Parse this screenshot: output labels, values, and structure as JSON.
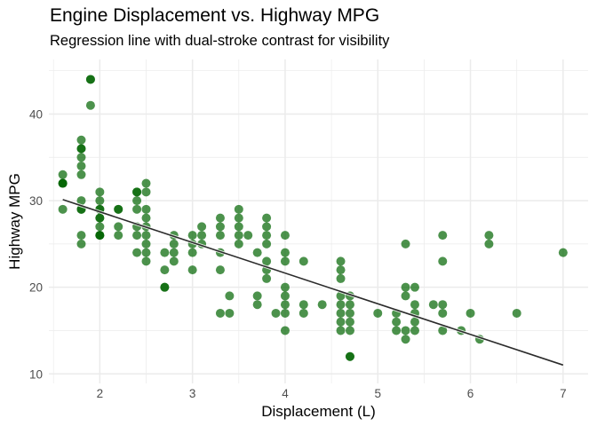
{
  "chart_data": {
    "type": "scatter",
    "title": "Engine Displacement vs. Highway MPG",
    "subtitle": "Regression line with dual-stroke contrast for visibility",
    "xlabel": "Displacement (L)",
    "ylabel": "Highway MPG",
    "xlim": [
      1.45,
      7.27
    ],
    "ylim": [
      8.9,
      46.3
    ],
    "xticks": [
      2,
      3,
      4,
      5,
      6,
      7
    ],
    "yticks": [
      10,
      20,
      30,
      40
    ],
    "grid": true,
    "legend": "none",
    "colors": {
      "point": "#006400",
      "line": "#2b2b2b",
      "grid": "#ebebeb"
    },
    "regression": {
      "x": [
        1.6,
        7.0
      ],
      "y": [
        30.12,
        11.02
      ]
    },
    "points": [
      [
        1.6,
        32
      ],
      [
        1.6,
        33
      ],
      [
        1.6,
        32
      ],
      [
        1.6,
        29
      ],
      [
        1.6,
        32
      ],
      [
        1.8,
        29
      ],
      [
        1.8,
        29
      ],
      [
        1.8,
        25
      ],
      [
        1.8,
        26
      ],
      [
        1.8,
        30
      ],
      [
        1.8,
        33
      ],
      [
        1.8,
        35
      ],
      [
        1.8,
        36
      ],
      [
        1.8,
        37
      ],
      [
        1.8,
        34
      ],
      [
        1.8,
        36
      ],
      [
        1.9,
        44
      ],
      [
        1.9,
        44
      ],
      [
        1.9,
        41
      ],
      [
        2.0,
        31
      ],
      [
        2.0,
        30
      ],
      [
        2.0,
        28
      ],
      [
        2.0,
        29
      ],
      [
        2.0,
        26
      ],
      [
        2.0,
        26
      ],
      [
        2.0,
        27
      ],
      [
        2.0,
        29
      ],
      [
        2.0,
        28
      ],
      [
        2.0,
        26
      ],
      [
        2.2,
        27
      ],
      [
        2.2,
        26
      ],
      [
        2.2,
        29
      ],
      [
        2.2,
        29
      ],
      [
        2.4,
        31
      ],
      [
        2.4,
        30
      ],
      [
        2.4,
        27
      ],
      [
        2.4,
        26
      ],
      [
        2.4,
        24
      ],
      [
        2.4,
        29
      ],
      [
        2.4,
        31
      ],
      [
        2.5,
        32
      ],
      [
        2.5,
        31
      ],
      [
        2.5,
        29
      ],
      [
        2.5,
        28
      ],
      [
        2.5,
        27
      ],
      [
        2.5,
        26
      ],
      [
        2.5,
        25
      ],
      [
        2.5,
        24
      ],
      [
        2.5,
        23
      ],
      [
        2.7,
        24
      ],
      [
        2.7,
        22
      ],
      [
        2.7,
        20
      ],
      [
        2.7,
        20
      ],
      [
        2.8,
        26
      ],
      [
        2.8,
        25
      ],
      [
        2.8,
        24
      ],
      [
        2.8,
        23
      ],
      [
        3.0,
        26
      ],
      [
        3.0,
        25
      ],
      [
        3.0,
        24
      ],
      [
        3.0,
        22
      ],
      [
        3.1,
        27
      ],
      [
        3.1,
        26
      ],
      [
        3.1,
        25
      ],
      [
        3.3,
        28
      ],
      [
        3.3,
        27
      ],
      [
        3.3,
        26
      ],
      [
        3.3,
        24
      ],
      [
        3.3,
        22
      ],
      [
        3.3,
        17
      ],
      [
        3.4,
        19
      ],
      [
        3.4,
        17
      ],
      [
        3.5,
        29
      ],
      [
        3.5,
        28
      ],
      [
        3.5,
        27
      ],
      [
        3.5,
        26
      ],
      [
        3.5,
        25
      ],
      [
        3.6,
        26
      ],
      [
        3.7,
        24
      ],
      [
        3.7,
        19
      ],
      [
        3.7,
        18
      ],
      [
        3.8,
        28
      ],
      [
        3.8,
        27
      ],
      [
        3.8,
        26
      ],
      [
        3.8,
        25
      ],
      [
        3.8,
        23
      ],
      [
        3.8,
        22
      ],
      [
        3.8,
        21
      ],
      [
        3.9,
        17
      ],
      [
        4.0,
        26
      ],
      [
        4.0,
        24
      ],
      [
        4.0,
        23
      ],
      [
        4.0,
        20
      ],
      [
        4.0,
        19
      ],
      [
        4.0,
        18
      ],
      [
        4.0,
        17
      ],
      [
        4.0,
        15
      ],
      [
        4.2,
        23
      ],
      [
        4.2,
        18
      ],
      [
        4.2,
        17
      ],
      [
        4.4,
        18
      ],
      [
        4.6,
        23
      ],
      [
        4.6,
        22
      ],
      [
        4.6,
        21
      ],
      [
        4.6,
        19
      ],
      [
        4.6,
        18
      ],
      [
        4.6,
        17
      ],
      [
        4.6,
        16
      ],
      [
        4.6,
        15
      ],
      [
        4.7,
        19
      ],
      [
        4.7,
        18
      ],
      [
        4.7,
        17
      ],
      [
        4.7,
        16
      ],
      [
        4.7,
        15
      ],
      [
        4.7,
        12
      ],
      [
        4.7,
        12
      ],
      [
        5.0,
        17
      ],
      [
        5.2,
        17
      ],
      [
        5.2,
        16
      ],
      [
        5.2,
        15
      ],
      [
        5.3,
        25
      ],
      [
        5.3,
        20
      ],
      [
        5.3,
        19
      ],
      [
        5.3,
        15
      ],
      [
        5.3,
        14
      ],
      [
        5.4,
        20
      ],
      [
        5.4,
        18
      ],
      [
        5.4,
        17
      ],
      [
        5.4,
        16
      ],
      [
        5.4,
        15
      ],
      [
        5.6,
        18
      ],
      [
        5.7,
        26
      ],
      [
        5.7,
        23
      ],
      [
        5.7,
        18
      ],
      [
        5.7,
        17
      ],
      [
        5.7,
        15
      ],
      [
        5.9,
        15
      ],
      [
        6.0,
        17
      ],
      [
        6.1,
        14
      ],
      [
        6.2,
        26
      ],
      [
        6.2,
        25
      ],
      [
        6.5,
        17
      ],
      [
        7.0,
        24
      ]
    ]
  }
}
